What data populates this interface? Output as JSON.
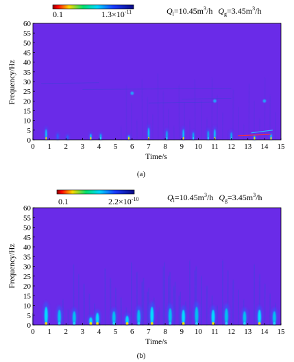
{
  "chart_data": [
    {
      "type": "heatmap",
      "panel_label": "(a)",
      "xlabel": "Time/s",
      "ylabel": "Frequency/Hz",
      "xlim": [
        0,
        15
      ],
      "ylim": [
        0,
        60
      ],
      "x_ticks": [
        "0",
        "1",
        "2",
        "3",
        "4",
        "5",
        "6",
        "7",
        "8",
        "9",
        "10",
        "11",
        "12",
        "13",
        "14",
        "15"
      ],
      "y_ticks": [
        "0",
        "5",
        "10",
        "15",
        "20",
        "25",
        "30",
        "35",
        "40",
        "45",
        "50",
        "55",
        "60"
      ],
      "colorbar": {
        "min_label": "0.1",
        "max_label": "1.3×10",
        "max_exp": "-11"
      },
      "conditions": {
        "ql_value": "=10.45m",
        "qg_value": "=3.45m",
        "unit_tail": "/h"
      },
      "background_color": "#6A2BE8",
      "bursts": [
        {
          "t": 0.8,
          "f_max": 7,
          "intensity": "high"
        },
        {
          "t": 1.5,
          "f_max": 4,
          "intensity": "low"
        },
        {
          "t": 2.1,
          "f_max": 3,
          "intensity": "low"
        },
        {
          "t": 3.5,
          "f_max": 4,
          "intensity": "high"
        },
        {
          "t": 4.1,
          "f_max": 4,
          "intensity": "medium"
        },
        {
          "t": 5.8,
          "f_max": 3,
          "intensity": "high"
        },
        {
          "t": 7.0,
          "f_max": 8,
          "intensity": "high"
        },
        {
          "t": 8.1,
          "f_max": 6,
          "intensity": "medium"
        },
        {
          "t": 9.1,
          "f_max": 7,
          "intensity": "high"
        },
        {
          "t": 9.7,
          "f_max": 5,
          "intensity": "medium"
        },
        {
          "t": 10.6,
          "f_max": 6,
          "intensity": "medium"
        },
        {
          "t": 11.0,
          "f_max": 7,
          "intensity": "high"
        },
        {
          "t": 12.0,
          "f_max": 5,
          "intensity": "medium"
        },
        {
          "t": 13.4,
          "f_max": 3,
          "intensity": "high"
        },
        {
          "t": 14.4,
          "f_max": 4,
          "intensity": "high"
        }
      ],
      "spots": [
        {
          "t": 6.0,
          "f": 24,
          "intensity": "medium"
        },
        {
          "t": 11.0,
          "f": 20,
          "intensity": "medium"
        },
        {
          "t": 14.0,
          "f": 20,
          "intensity": "medium"
        }
      ]
    },
    {
      "type": "heatmap",
      "panel_label": "(b)",
      "xlabel": "Time/s",
      "ylabel": "Frequency/Hz",
      "xlim": [
        0,
        15
      ],
      "ylim": [
        0,
        60
      ],
      "x_ticks": [
        "0",
        "1",
        "2",
        "3",
        "4",
        "5",
        "6",
        "7",
        "8",
        "9",
        "10",
        "11",
        "12",
        "13",
        "14",
        "15"
      ],
      "y_ticks": [
        "0",
        "5",
        "10",
        "15",
        "20",
        "25",
        "30",
        "35",
        "40",
        "45",
        "50",
        "55",
        "60"
      ],
      "colorbar": {
        "min_label": "0.1",
        "max_label": "2.2×10",
        "max_exp": "-10"
      },
      "conditions": {
        "ql_value": "=10.45m",
        "qg_value": "=3.45m",
        "unit_tail": "/h"
      },
      "background_color": "#6A2BE8",
      "bursts": [
        {
          "t": 0.8,
          "f_max": 12,
          "intensity": "high"
        },
        {
          "t": 1.6,
          "f_max": 10,
          "intensity": "medium"
        },
        {
          "t": 2.5,
          "f_max": 9,
          "intensity": "medium"
        },
        {
          "t": 3.5,
          "f_max": 5,
          "intensity": "high"
        },
        {
          "t": 3.9,
          "f_max": 8,
          "intensity": "high"
        },
        {
          "t": 4.9,
          "f_max": 9,
          "intensity": "medium"
        },
        {
          "t": 5.7,
          "f_max": 6,
          "intensity": "high"
        },
        {
          "t": 6.4,
          "f_max": 10,
          "intensity": "medium"
        },
        {
          "t": 7.2,
          "f_max": 12,
          "intensity": "high"
        },
        {
          "t": 8.3,
          "f_max": 11,
          "intensity": "medium"
        },
        {
          "t": 9.1,
          "f_max": 10,
          "intensity": "high"
        },
        {
          "t": 9.9,
          "f_max": 12,
          "intensity": "medium"
        },
        {
          "t": 10.9,
          "f_max": 10,
          "intensity": "high"
        },
        {
          "t": 11.7,
          "f_max": 11,
          "intensity": "medium"
        },
        {
          "t": 12.8,
          "f_max": 9,
          "intensity": "medium"
        },
        {
          "t": 13.7,
          "f_max": 10,
          "intensity": "high"
        },
        {
          "t": 14.6,
          "f_max": 9,
          "intensity": "medium"
        }
      ],
      "spots": []
    }
  ]
}
